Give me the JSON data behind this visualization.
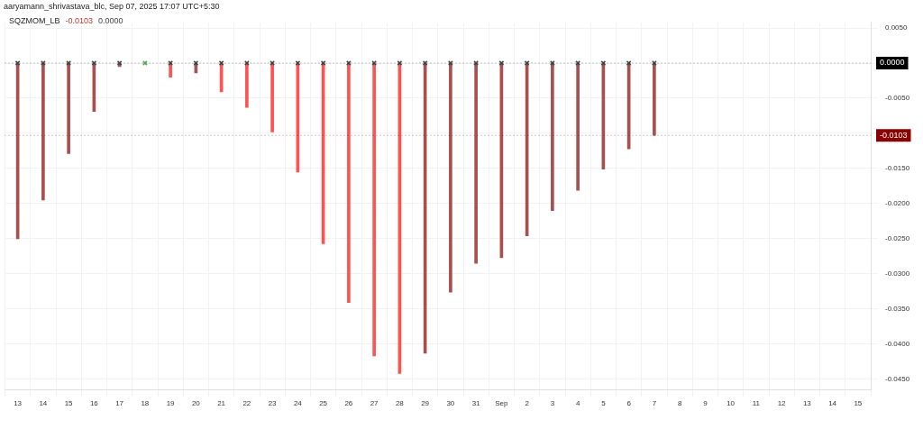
{
  "chart_data": {
    "type": "bar",
    "title": "SQZMOM_LB",
    "subtitle": "aaryamann_shrivastava_blc, Sep 07, 2025 17:07 UTC+5:30",
    "categories": [
      "13",
      "14",
      "15",
      "16",
      "17",
      "18",
      "19",
      "20",
      "21",
      "22",
      "23",
      "24",
      "25",
      "26",
      "27",
      "28",
      "29",
      "30",
      "31",
      "Sep",
      "2",
      "3",
      "4",
      "5",
      "6",
      "7",
      "8",
      "9",
      "10",
      "11",
      "12",
      "13",
      "14",
      "15"
    ],
    "series": [
      {
        "values": [
          -0.025,
          -0.0195,
          -0.0129,
          -0.0069,
          -0.0005,
          0,
          -0.002,
          -0.0014,
          -0.0041,
          -0.0063,
          -0.0098,
          -0.0155,
          -0.0257,
          -0.0341,
          -0.0417,
          -0.0442,
          -0.0413,
          -0.0326,
          -0.0285,
          -0.0277,
          -0.0246,
          -0.021,
          -0.0181,
          -0.0151,
          -0.0122,
          -0.0103,
          null,
          null,
          null,
          null,
          null,
          null,
          null,
          null
        ],
        "colors": [
          "#a84f4f",
          "#a84f4f",
          "#a84f4f",
          "#a84f4f",
          "#a84f4f",
          "#a84f4f",
          "#ff5252",
          "#a84f4f",
          "#ff5252",
          "#ff5252",
          "#ff5252",
          "#ff5252",
          "#ff5252",
          "#ff5252",
          "#ff5252",
          "#ff5252",
          "#a84f4f",
          "#a84f4f",
          "#a84f4f",
          "#a84f4f",
          "#a84f4f",
          "#a84f4f",
          "#a84f4f",
          "#a84f4f",
          "#a84f4f",
          "#a84f4f",
          null,
          null,
          null,
          null,
          null,
          null,
          null,
          null
        ],
        "color": "#c0392b"
      },
      {
        "type": "scatter",
        "marker": "cross",
        "color": "#444444",
        "x": [
          "13",
          "14",
          "15",
          "16",
          "17",
          "18",
          "19",
          "20",
          "21",
          "22",
          "23",
          "24",
          "25",
          "26",
          "27",
          "28",
          "29",
          "30",
          "31",
          "Sep",
          "2",
          "3",
          "4",
          "5",
          "6",
          "7"
        ],
        "values": [
          0,
          0,
          0,
          0,
          0,
          0,
          0,
          0,
          0,
          0,
          0,
          0,
          0,
          0,
          0,
          0,
          0,
          0,
          0,
          0,
          0,
          0,
          0,
          0,
          0,
          0
        ],
        "colors": [
          "#444444",
          "#444444",
          "#444444",
          "#444444",
          "#444444",
          "#4caf50",
          "#444444",
          "#444444",
          "#444444",
          "#444444",
          "#444444",
          "#444444",
          "#444444",
          "#444444",
          "#444444",
          "#444444",
          "#444444",
          "#444444",
          "#444444",
          "#444444",
          "#444444",
          "#444444",
          "#444444",
          "#444444",
          "#444444",
          "#444444"
        ]
      }
    ],
    "ylim": [
      -0.0465,
      0.0058
    ],
    "yticks": [
      {
        "value": 0.005,
        "label": "0.0050"
      },
      {
        "value": 0,
        "label": null
      },
      {
        "value": -0.005,
        "label": "-0.0050"
      },
      {
        "value": -0.01,
        "label": null
      },
      {
        "value": -0.015,
        "label": "-0.0150"
      },
      {
        "value": -0.02,
        "label": "-0.0200"
      },
      {
        "value": -0.025,
        "label": "-0.0250"
      },
      {
        "value": -0.03,
        "label": "-0.0300"
      },
      {
        "value": -0.035,
        "label": "-0.0350"
      },
      {
        "value": -0.04,
        "label": "-0.0400"
      },
      {
        "value": -0.045,
        "label": "-0.0450"
      }
    ],
    "grid": true,
    "annotations": [
      "-0.0103",
      "0.0000"
    ],
    "ref_lines": [
      {
        "axis": "y",
        "value": 0,
        "label": "0.0000",
        "color": "#000000",
        "line_style": "dotted"
      },
      {
        "axis": "y",
        "value": -0.0103,
        "label": "-0.0103",
        "color": "#8b0000",
        "line_style": "dotted"
      }
    ]
  }
}
